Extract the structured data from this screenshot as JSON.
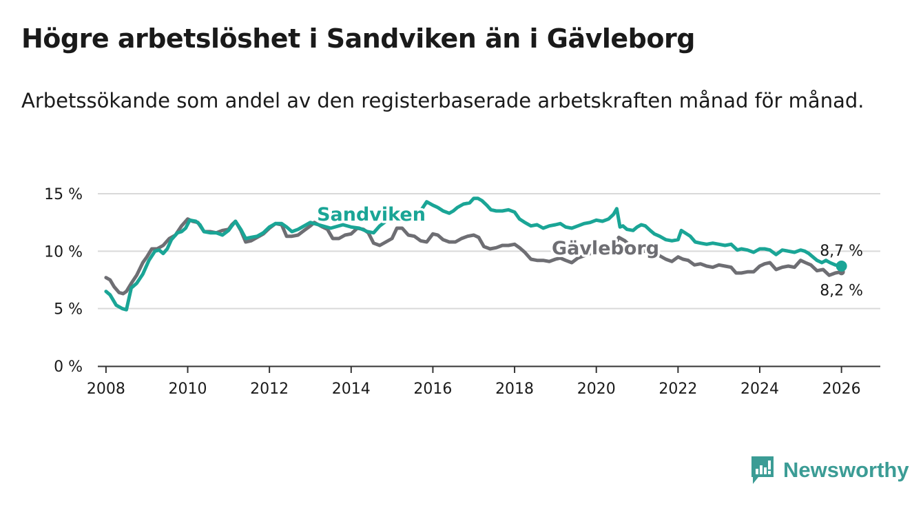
{
  "header": {
    "title": "Högre arbetslöshet i Sandviken än i Gävleborg",
    "subtitle": "Arbetssökande som andel av den registerbaserade arbetskraften månad för månad."
  },
  "brand": {
    "name": "Newsworthy"
  },
  "colors": {
    "sandviken": "#1aa596",
    "gavleborg": "#6e6e73",
    "grid": "#d9d9d9",
    "axis": "#333333"
  },
  "chart_data": {
    "type": "line",
    "title": "Högre arbetslöshet i Sandviken än i Gävleborg",
    "subtitle": "Arbetssökande som andel av den registerbaserade arbetskraften månad för månad.",
    "xlabel": "",
    "ylabel": "",
    "xlim": [
      2007.8,
      2026.95
    ],
    "ylim": [
      0,
      15
    ],
    "y_ticks": [
      0,
      5,
      10,
      15
    ],
    "y_tick_labels": [
      "0 %",
      "5 %",
      "10 %",
      "15 %"
    ],
    "x_ticks": [
      2008,
      2010,
      2012,
      2014,
      2016,
      2018,
      2020,
      2022,
      2024,
      2026
    ],
    "x_tick_labels": [
      "2008",
      "2010",
      "2012",
      "2014",
      "2016",
      "2018",
      "2020",
      "2022",
      "2024",
      "2026"
    ],
    "grid": true,
    "series": [
      {
        "name": "Sandviken",
        "end_label": "8,7 %",
        "x": [
          2008.0,
          2008.1,
          2008.25,
          2008.4,
          2008.5,
          2008.62,
          2008.75,
          2008.9,
          2009.05,
          2009.2,
          2009.3,
          2009.4,
          2009.5,
          2009.6,
          2009.75,
          2009.85,
          2009.95,
          2010.05,
          2010.2,
          2010.3,
          2010.4,
          2010.55,
          2010.7,
          2010.85,
          2011.0,
          2011.08,
          2011.17,
          2011.3,
          2011.42,
          2011.55,
          2011.7,
          2011.85,
          2012.0,
          2012.15,
          2012.3,
          2012.42,
          2012.55,
          2012.7,
          2012.85,
          2013.0,
          2013.2,
          2013.5,
          2013.8,
          2014.0,
          2014.2,
          2014.4,
          2014.55,
          2014.7,
          2014.85,
          2015.0,
          2015.2,
          2015.4,
          2015.55,
          2015.7,
          2015.85,
          2016.0,
          2016.12,
          2016.25,
          2016.4,
          2016.5,
          2016.6,
          2016.75,
          2016.9,
          2017.0,
          2017.1,
          2017.2,
          2017.32,
          2017.42,
          2017.55,
          2017.7,
          2017.85,
          2018.0,
          2018.12,
          2018.25,
          2018.4,
          2018.55,
          2018.7,
          2018.85,
          2019.0,
          2019.12,
          2019.25,
          2019.4,
          2019.55,
          2019.7,
          2019.85,
          2020.0,
          2020.15,
          2020.3,
          2020.42,
          2020.5,
          2020.58,
          2020.65,
          2020.75,
          2020.9,
          2021.0,
          2021.1,
          2021.2,
          2021.32,
          2021.42,
          2021.55,
          2021.7,
          2021.85,
          2022.0,
          2022.08,
          2022.17,
          2022.3,
          2022.42,
          2022.55,
          2022.7,
          2022.85,
          2023.0,
          2023.15,
          2023.3,
          2023.45,
          2023.55,
          2023.7,
          2023.85,
          2024.0,
          2024.12,
          2024.25,
          2024.4,
          2024.55,
          2024.7,
          2024.85,
          2025.0,
          2025.1,
          2025.2,
          2025.3,
          2025.4,
          2025.52,
          2025.62,
          2025.72,
          2025.85,
          2026.0
        ],
        "values": [
          6.5,
          6.2,
          5.3,
          5.0,
          4.9,
          6.8,
          7.2,
          8.0,
          9.2,
          10.0,
          10.1,
          9.8,
          10.2,
          11.0,
          11.6,
          11.7,
          12.0,
          12.7,
          12.6,
          12.3,
          11.7,
          11.6,
          11.6,
          11.4,
          11.8,
          12.2,
          12.6,
          11.9,
          11.1,
          11.2,
          11.3,
          11.6,
          12.1,
          12.4,
          12.4,
          12.1,
          11.7,
          11.9,
          12.2,
          12.5,
          12.3,
          12.0,
          12.3,
          12.1,
          12.0,
          11.7,
          11.6,
          12.2,
          12.6,
          12.9,
          12.9,
          12.8,
          13.2,
          13.5,
          14.3,
          14.0,
          13.8,
          13.5,
          13.3,
          13.5,
          13.8,
          14.1,
          14.2,
          14.6,
          14.6,
          14.4,
          14.0,
          13.6,
          13.5,
          13.5,
          13.6,
          13.4,
          12.8,
          12.5,
          12.2,
          12.3,
          12.0,
          12.2,
          12.3,
          12.4,
          12.1,
          12.0,
          12.2,
          12.4,
          12.5,
          12.7,
          12.6,
          12.8,
          13.2,
          13.7,
          12.1,
          12.2,
          11.9,
          11.8,
          12.1,
          12.3,
          12.2,
          11.8,
          11.5,
          11.3,
          11.0,
          10.9,
          11.0,
          11.8,
          11.6,
          11.3,
          10.8,
          10.7,
          10.6,
          10.7,
          10.6,
          10.5,
          10.6,
          10.1,
          10.2,
          10.1,
          9.9,
          10.2,
          10.2,
          10.1,
          9.7,
          10.1,
          10.0,
          9.9,
          10.1,
          10.0,
          9.8,
          9.5,
          9.2,
          9.0,
          9.2,
          9.0,
          8.8,
          8.7
        ]
      },
      {
        "name": "Gävleborg",
        "end_label": "8,2 %",
        "x": [
          2008.0,
          2008.1,
          2008.2,
          2008.32,
          2008.42,
          2008.5,
          2008.62,
          2008.75,
          2008.9,
          2009.0,
          2009.12,
          2009.25,
          2009.4,
          2009.55,
          2009.7,
          2009.85,
          2010.0,
          2010.12,
          2010.25,
          2010.4,
          2010.55,
          2010.7,
          2010.85,
          2011.0,
          2011.08,
          2011.17,
          2011.3,
          2011.42,
          2011.55,
          2011.7,
          2011.85,
          2012.0,
          2012.15,
          2012.3,
          2012.42,
          2012.55,
          2012.7,
          2012.85,
          2013.0,
          2013.1,
          2013.2,
          2013.3,
          2013.42,
          2013.55,
          2013.7,
          2013.85,
          2014.0,
          2014.15,
          2014.3,
          2014.42,
          2014.55,
          2014.7,
          2014.85,
          2015.0,
          2015.12,
          2015.25,
          2015.4,
          2015.55,
          2015.7,
          2015.85,
          2016.0,
          2016.12,
          2016.25,
          2016.4,
          2016.55,
          2016.7,
          2016.85,
          2017.0,
          2017.12,
          2017.25,
          2017.4,
          2017.55,
          2017.7,
          2017.85,
          2018.0,
          2018.12,
          2018.25,
          2018.4,
          2018.55,
          2018.7,
          2018.85,
          2019.0,
          2019.12,
          2019.25,
          2019.4,
          2019.55,
          2019.7,
          2019.85,
          2020.0,
          2020.12,
          2020.25,
          2020.4,
          2020.55,
          2020.7,
          2020.85,
          2021.0,
          2021.12,
          2021.25,
          2021.4,
          2021.55,
          2021.7,
          2021.85,
          2022.0,
          2022.12,
          2022.25,
          2022.4,
          2022.55,
          2022.7,
          2022.85,
          2023.0,
          2023.15,
          2023.3,
          2023.42,
          2023.55,
          2023.7,
          2023.85,
          2024.0,
          2024.12,
          2024.25,
          2024.4,
          2024.55,
          2024.7,
          2024.85,
          2025.0,
          2025.12,
          2025.25,
          2025.4,
          2025.55,
          2025.7,
          2025.85,
          2026.0
        ],
        "values": [
          7.7,
          7.5,
          6.9,
          6.4,
          6.3,
          6.5,
          7.2,
          7.9,
          9.0,
          9.5,
          10.2,
          10.2,
          10.5,
          11.1,
          11.4,
          12.2,
          12.8,
          12.6,
          12.5,
          11.7,
          11.7,
          11.6,
          11.8,
          11.9,
          12.3,
          12.6,
          11.8,
          10.8,
          10.9,
          11.2,
          11.5,
          12.0,
          12.4,
          12.3,
          11.3,
          11.3,
          11.4,
          11.8,
          12.2,
          12.5,
          12.3,
          12.1,
          11.9,
          11.1,
          11.1,
          11.4,
          11.5,
          12.0,
          11.9,
          11.6,
          10.7,
          10.5,
          10.8,
          11.1,
          12.0,
          12.0,
          11.4,
          11.3,
          10.9,
          10.8,
          11.5,
          11.4,
          11.0,
          10.8,
          10.8,
          11.1,
          11.3,
          11.4,
          11.2,
          10.4,
          10.2,
          10.3,
          10.5,
          10.5,
          10.6,
          10.3,
          9.9,
          9.3,
          9.2,
          9.2,
          9.1,
          9.3,
          9.4,
          9.2,
          9.0,
          9.4,
          9.6,
          9.8,
          9.8,
          10.1,
          10.0,
          10.1,
          11.2,
          10.9,
          10.4,
          10.1,
          10.0,
          10.0,
          9.9,
          9.6,
          9.3,
          9.1,
          9.5,
          9.3,
          9.2,
          8.8,
          8.9,
          8.7,
          8.6,
          8.8,
          8.7,
          8.6,
          8.1,
          8.1,
          8.2,
          8.2,
          8.7,
          8.9,
          9.0,
          8.4,
          8.6,
          8.7,
          8.6,
          9.2,
          9.0,
          8.8,
          8.3,
          8.4,
          7.9,
          8.1,
          8.2
        ]
      }
    ]
  }
}
